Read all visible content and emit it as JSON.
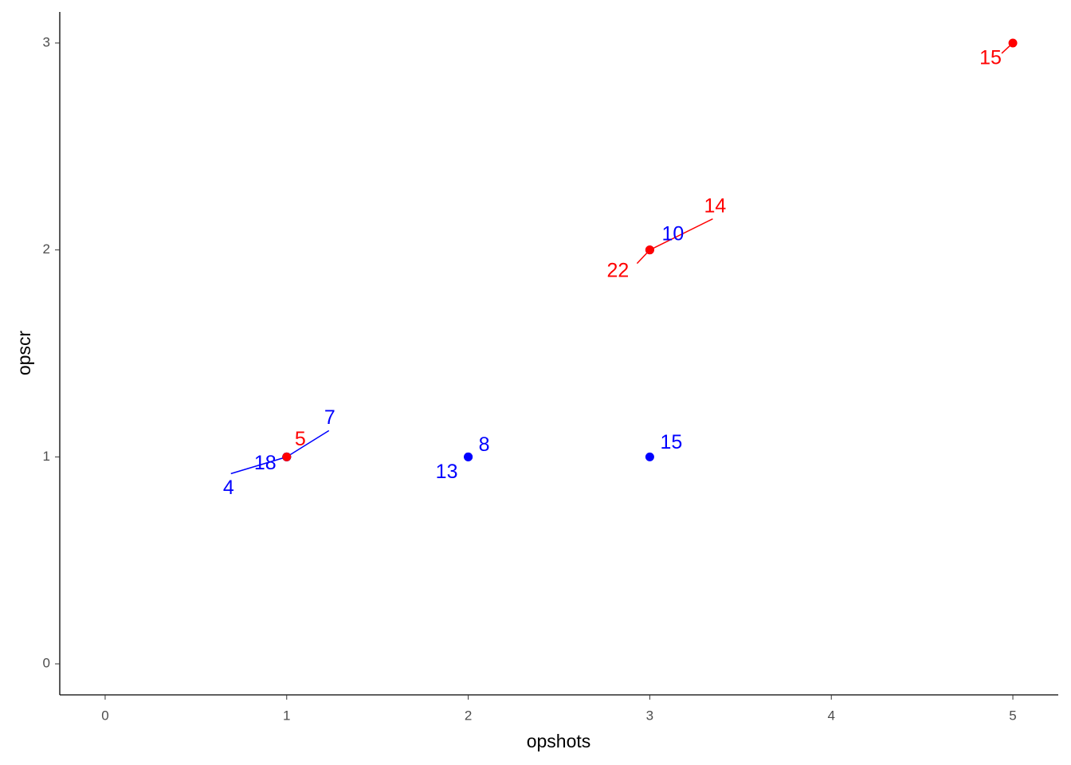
{
  "chart_data": {
    "type": "scatter",
    "x_label": "opshots",
    "y_label": "opscr",
    "xlim": [
      -0.25,
      5.25
    ],
    "xticks": [
      0,
      1,
      2,
      3,
      4,
      5
    ],
    "ylim": [
      -0.15,
      3.15
    ],
    "yticks": [
      0,
      1,
      2,
      3
    ],
    "grid": false,
    "series": [
      {
        "color": "#0000ff",
        "x": [
          1,
          1,
          1,
          2,
          2,
          3,
          3
        ],
        "y": [
          1,
          1,
          1,
          1,
          1,
          1,
          2
        ],
        "labels": [
          4,
          18,
          7,
          13,
          8,
          15,
          10
        ]
      },
      {
        "color": "#ff0000",
        "x": [
          1,
          3,
          3,
          5
        ],
        "y": [
          1,
          2,
          2,
          3
        ],
        "labels": [
          5,
          22,
          14,
          15
        ]
      }
    ]
  }
}
